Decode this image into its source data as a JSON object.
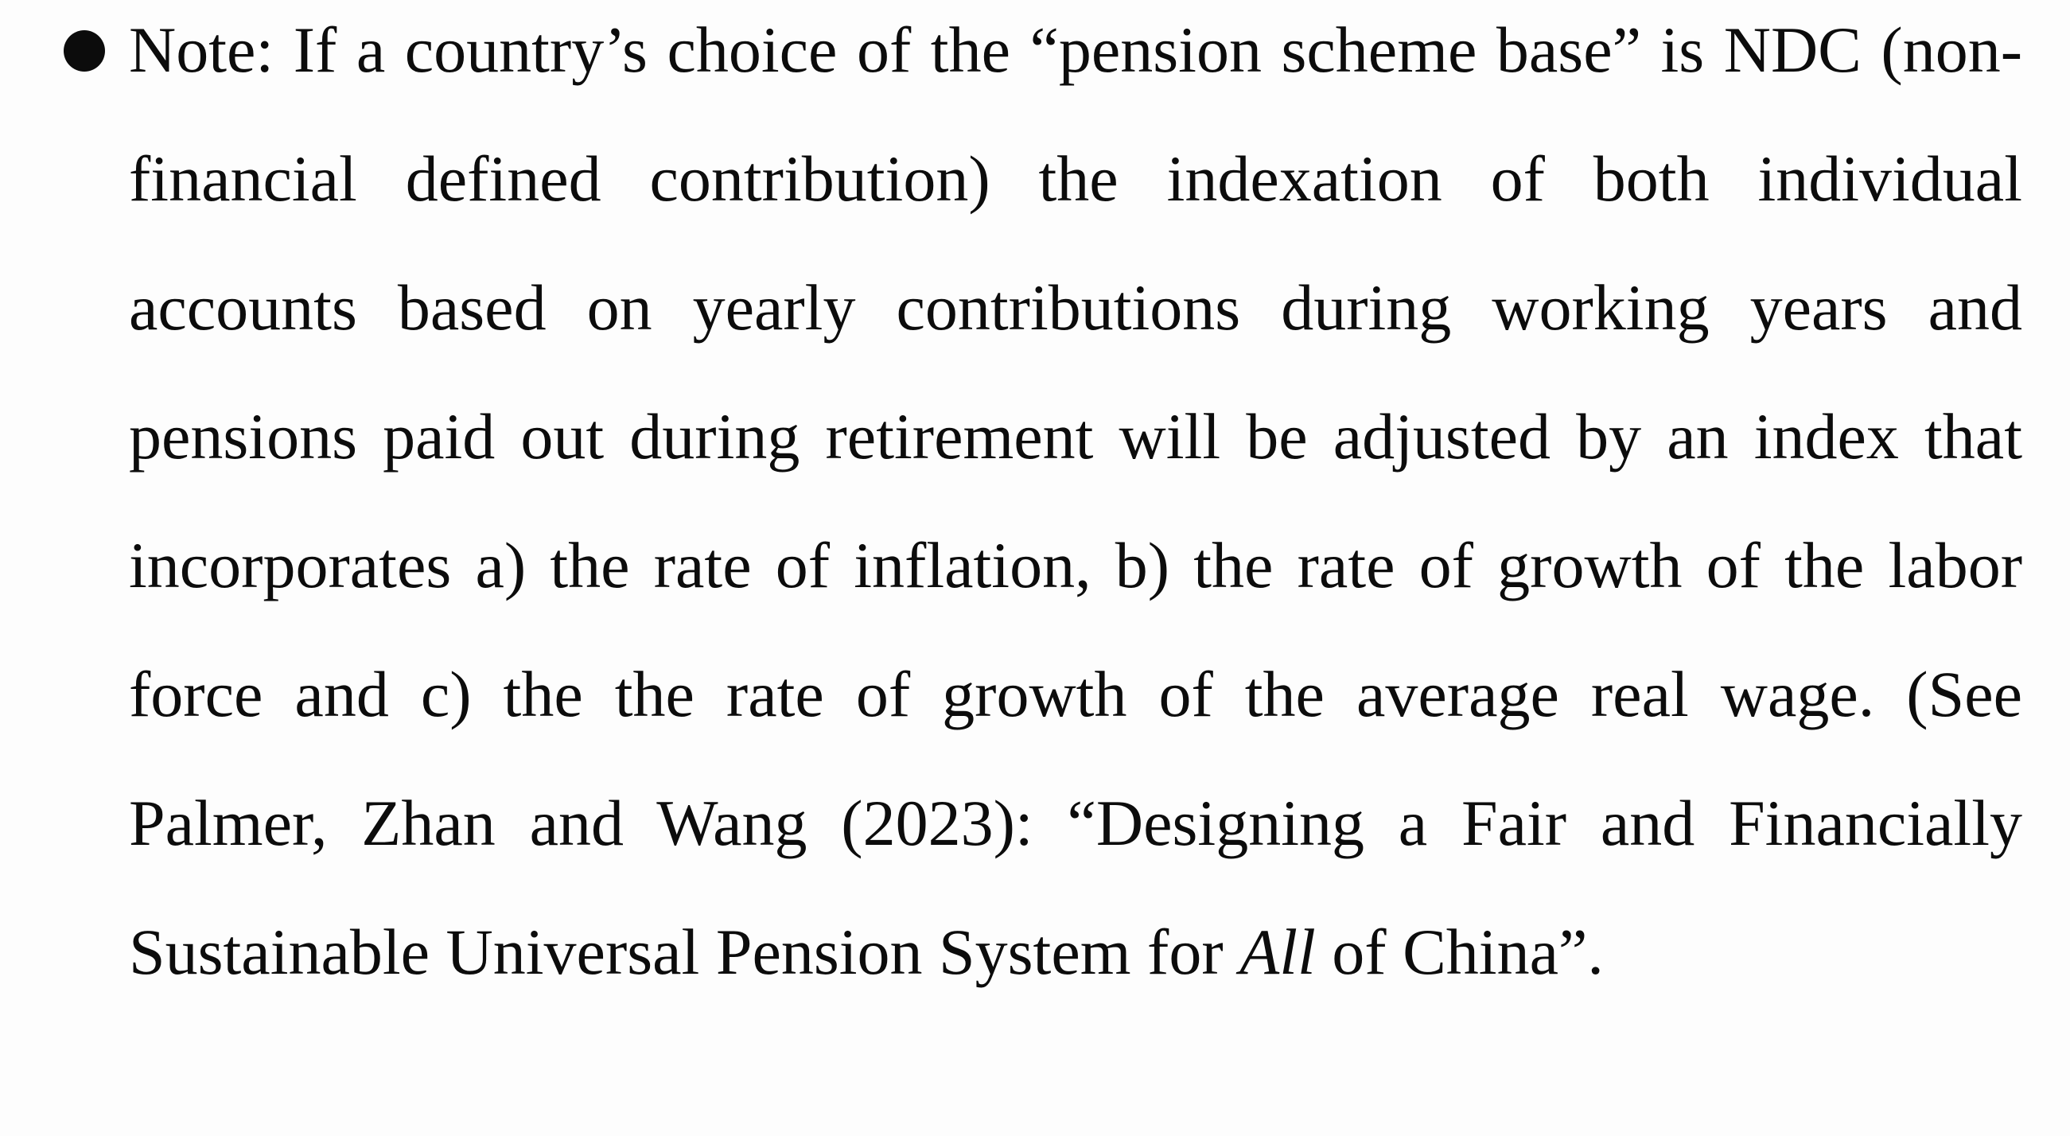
{
  "note": {
    "part1": "Note: If a country’s choice of the “pension scheme base” is NDC (non-financial defined contribution) the indexation of both individual accounts based on yearly contributions during working years and pensions paid out during retirement will be adjusted by an index that incorporates a) the rate of inflation, b) the rate of growth of the labor force and c) the the rate of growth of the average real wage. (See Palmer, Zhan and Wang (2023): “Designing a Fair and Financially Sustainable Universal Pension System for ",
    "emphasis": "All",
    "part2": " of China”."
  }
}
